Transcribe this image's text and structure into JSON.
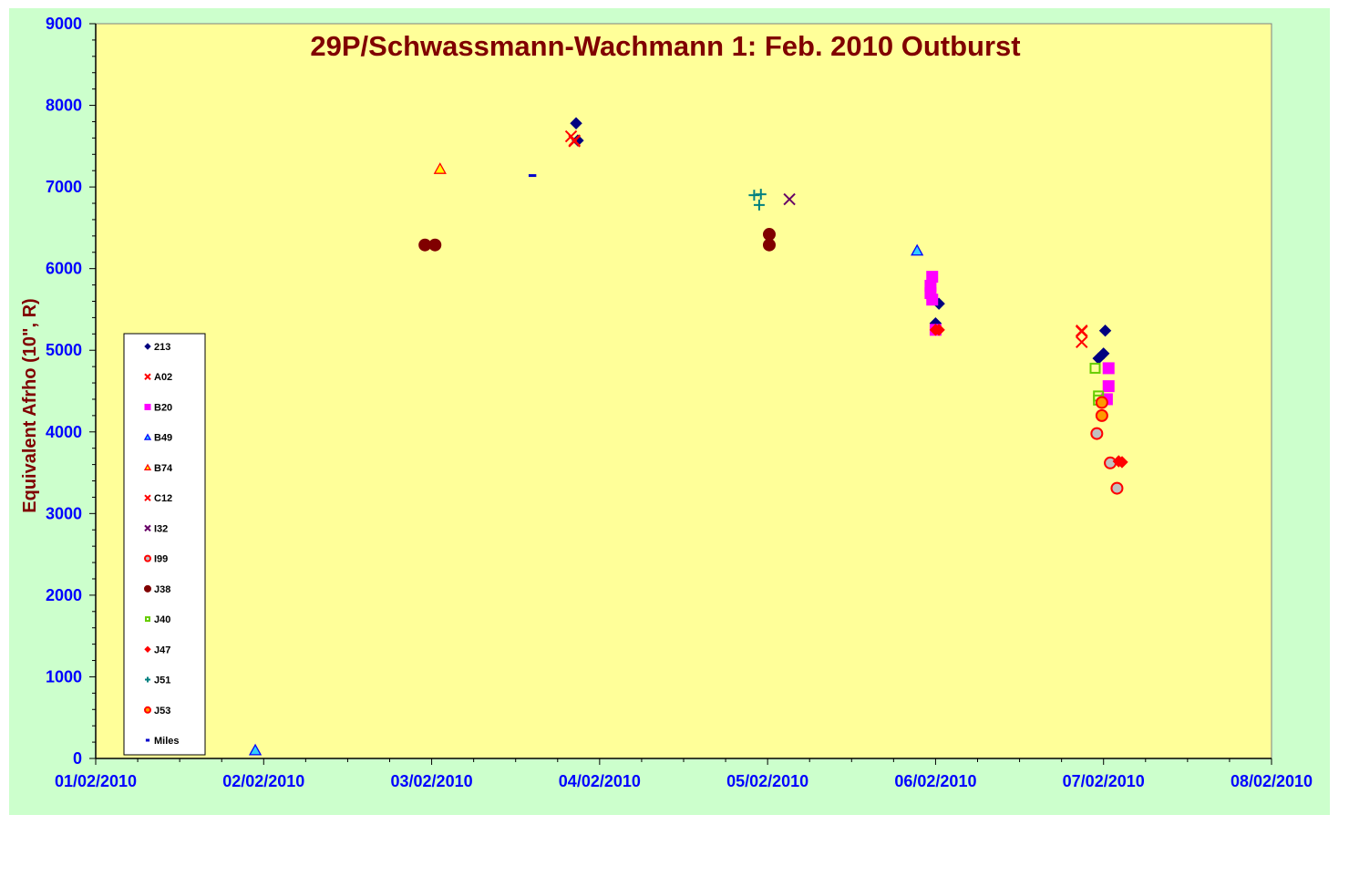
{
  "chart_data": {
    "type": "scatter",
    "title": "29P/Schwassmann-Wachmann 1: Feb. 2010 Outburst",
    "xlabel": "",
    "ylabel": "Equivalent Afrho (10\", R)",
    "x_ticks": [
      "01/02/2010",
      "02/02/2010",
      "03/02/2010",
      "04/02/2010",
      "05/02/2010",
      "06/02/2010",
      "07/02/2010",
      "08/02/2010"
    ],
    "xlim": [
      0,
      7
    ],
    "ylim": [
      0,
      9000
    ],
    "y_ticks": [
      0,
      1000,
      2000,
      3000,
      4000,
      5000,
      6000,
      7000,
      8000,
      9000
    ],
    "grid": false,
    "legend_position": "bottom-left",
    "colors": {
      "plot_bg": "#ffff99",
      "chart_bg": "#ccffcc",
      "axis_text": "#0000ff",
      "title": "#800000"
    },
    "series": [
      {
        "name": "213",
        "marker": "diamond",
        "color": "#000080",
        "points": [
          [
            2.86,
            7780
          ],
          [
            2.87,
            7570
          ],
          [
            5.02,
            5570
          ],
          [
            5.0,
            5330
          ],
          [
            6.01,
            5240
          ],
          [
            5.97,
            4900
          ],
          [
            6.0,
            4960
          ]
        ]
      },
      {
        "name": "A02",
        "marker": "x",
        "color": "#ff0000",
        "points": [
          [
            2.83,
            7620
          ],
          [
            2.85,
            7570
          ],
          [
            5.87,
            5230
          ],
          [
            5.87,
            5100
          ]
        ]
      },
      {
        "name": "B20",
        "marker": "square",
        "color": "#ff00ff",
        "points": [
          [
            4.98,
            5900
          ],
          [
            4.97,
            5790
          ],
          [
            4.97,
            5700
          ],
          [
            4.98,
            5620
          ],
          [
            5.0,
            5250
          ],
          [
            6.03,
            4780
          ],
          [
            6.03,
            4560
          ],
          [
            6.02,
            4400
          ]
        ]
      },
      {
        "name": "B49",
        "marker": "triangle",
        "color": "#0000ff",
        "fill": "#33ccff",
        "points": [
          [
            0.95,
            100
          ],
          [
            4.89,
            6220
          ]
        ]
      },
      {
        "name": "B74",
        "marker": "triangle",
        "color": "#ff0000",
        "fill": "#ffff00",
        "points": [
          [
            2.05,
            7220
          ]
        ]
      },
      {
        "name": "C12",
        "marker": "x",
        "color": "#ff0000",
        "points": [
          [
            2.85,
            7560
          ],
          [
            5.87,
            5240
          ]
        ]
      },
      {
        "name": "I32",
        "marker": "x",
        "color": "#660066",
        "points": [
          [
            4.13,
            6850
          ]
        ]
      },
      {
        "name": "I99",
        "marker": "circle",
        "color": "#ff0000",
        "fill": "#c0c0c0",
        "points": [
          [
            5.96,
            3980
          ],
          [
            6.04,
            3620
          ],
          [
            6.08,
            3310
          ]
        ]
      },
      {
        "name": "J38",
        "marker": "circle",
        "color": "#800000",
        "fill": "#800000",
        "points": [
          [
            1.96,
            6290
          ],
          [
            2.02,
            6290
          ],
          [
            4.01,
            6420
          ],
          [
            4.01,
            6290
          ]
        ]
      },
      {
        "name": "J40",
        "marker": "square",
        "color": "#66cc00",
        "fill": "none",
        "points": [
          [
            5.95,
            4780
          ],
          [
            5.97,
            4440
          ],
          [
            5.97,
            4390
          ]
        ]
      },
      {
        "name": "J47",
        "marker": "diamond",
        "color": "#ff0000",
        "points": [
          [
            5.0,
            5250
          ],
          [
            5.02,
            5250
          ],
          [
            6.09,
            3640
          ],
          [
            6.11,
            3630
          ]
        ]
      },
      {
        "name": "J51",
        "marker": "plus",
        "color": "#008080",
        "points": [
          [
            3.92,
            6900
          ],
          [
            3.96,
            6910
          ],
          [
            3.95,
            6780
          ]
        ]
      },
      {
        "name": "J53",
        "marker": "circle",
        "color": "#ff0000",
        "fill": "#ff9900",
        "points": [
          [
            5.99,
            4360
          ],
          [
            5.99,
            4200
          ]
        ]
      },
      {
        "name": "Miles",
        "marker": "dash",
        "color": "#0000cc",
        "points": [
          [
            2.6,
            7140
          ]
        ]
      }
    ]
  }
}
